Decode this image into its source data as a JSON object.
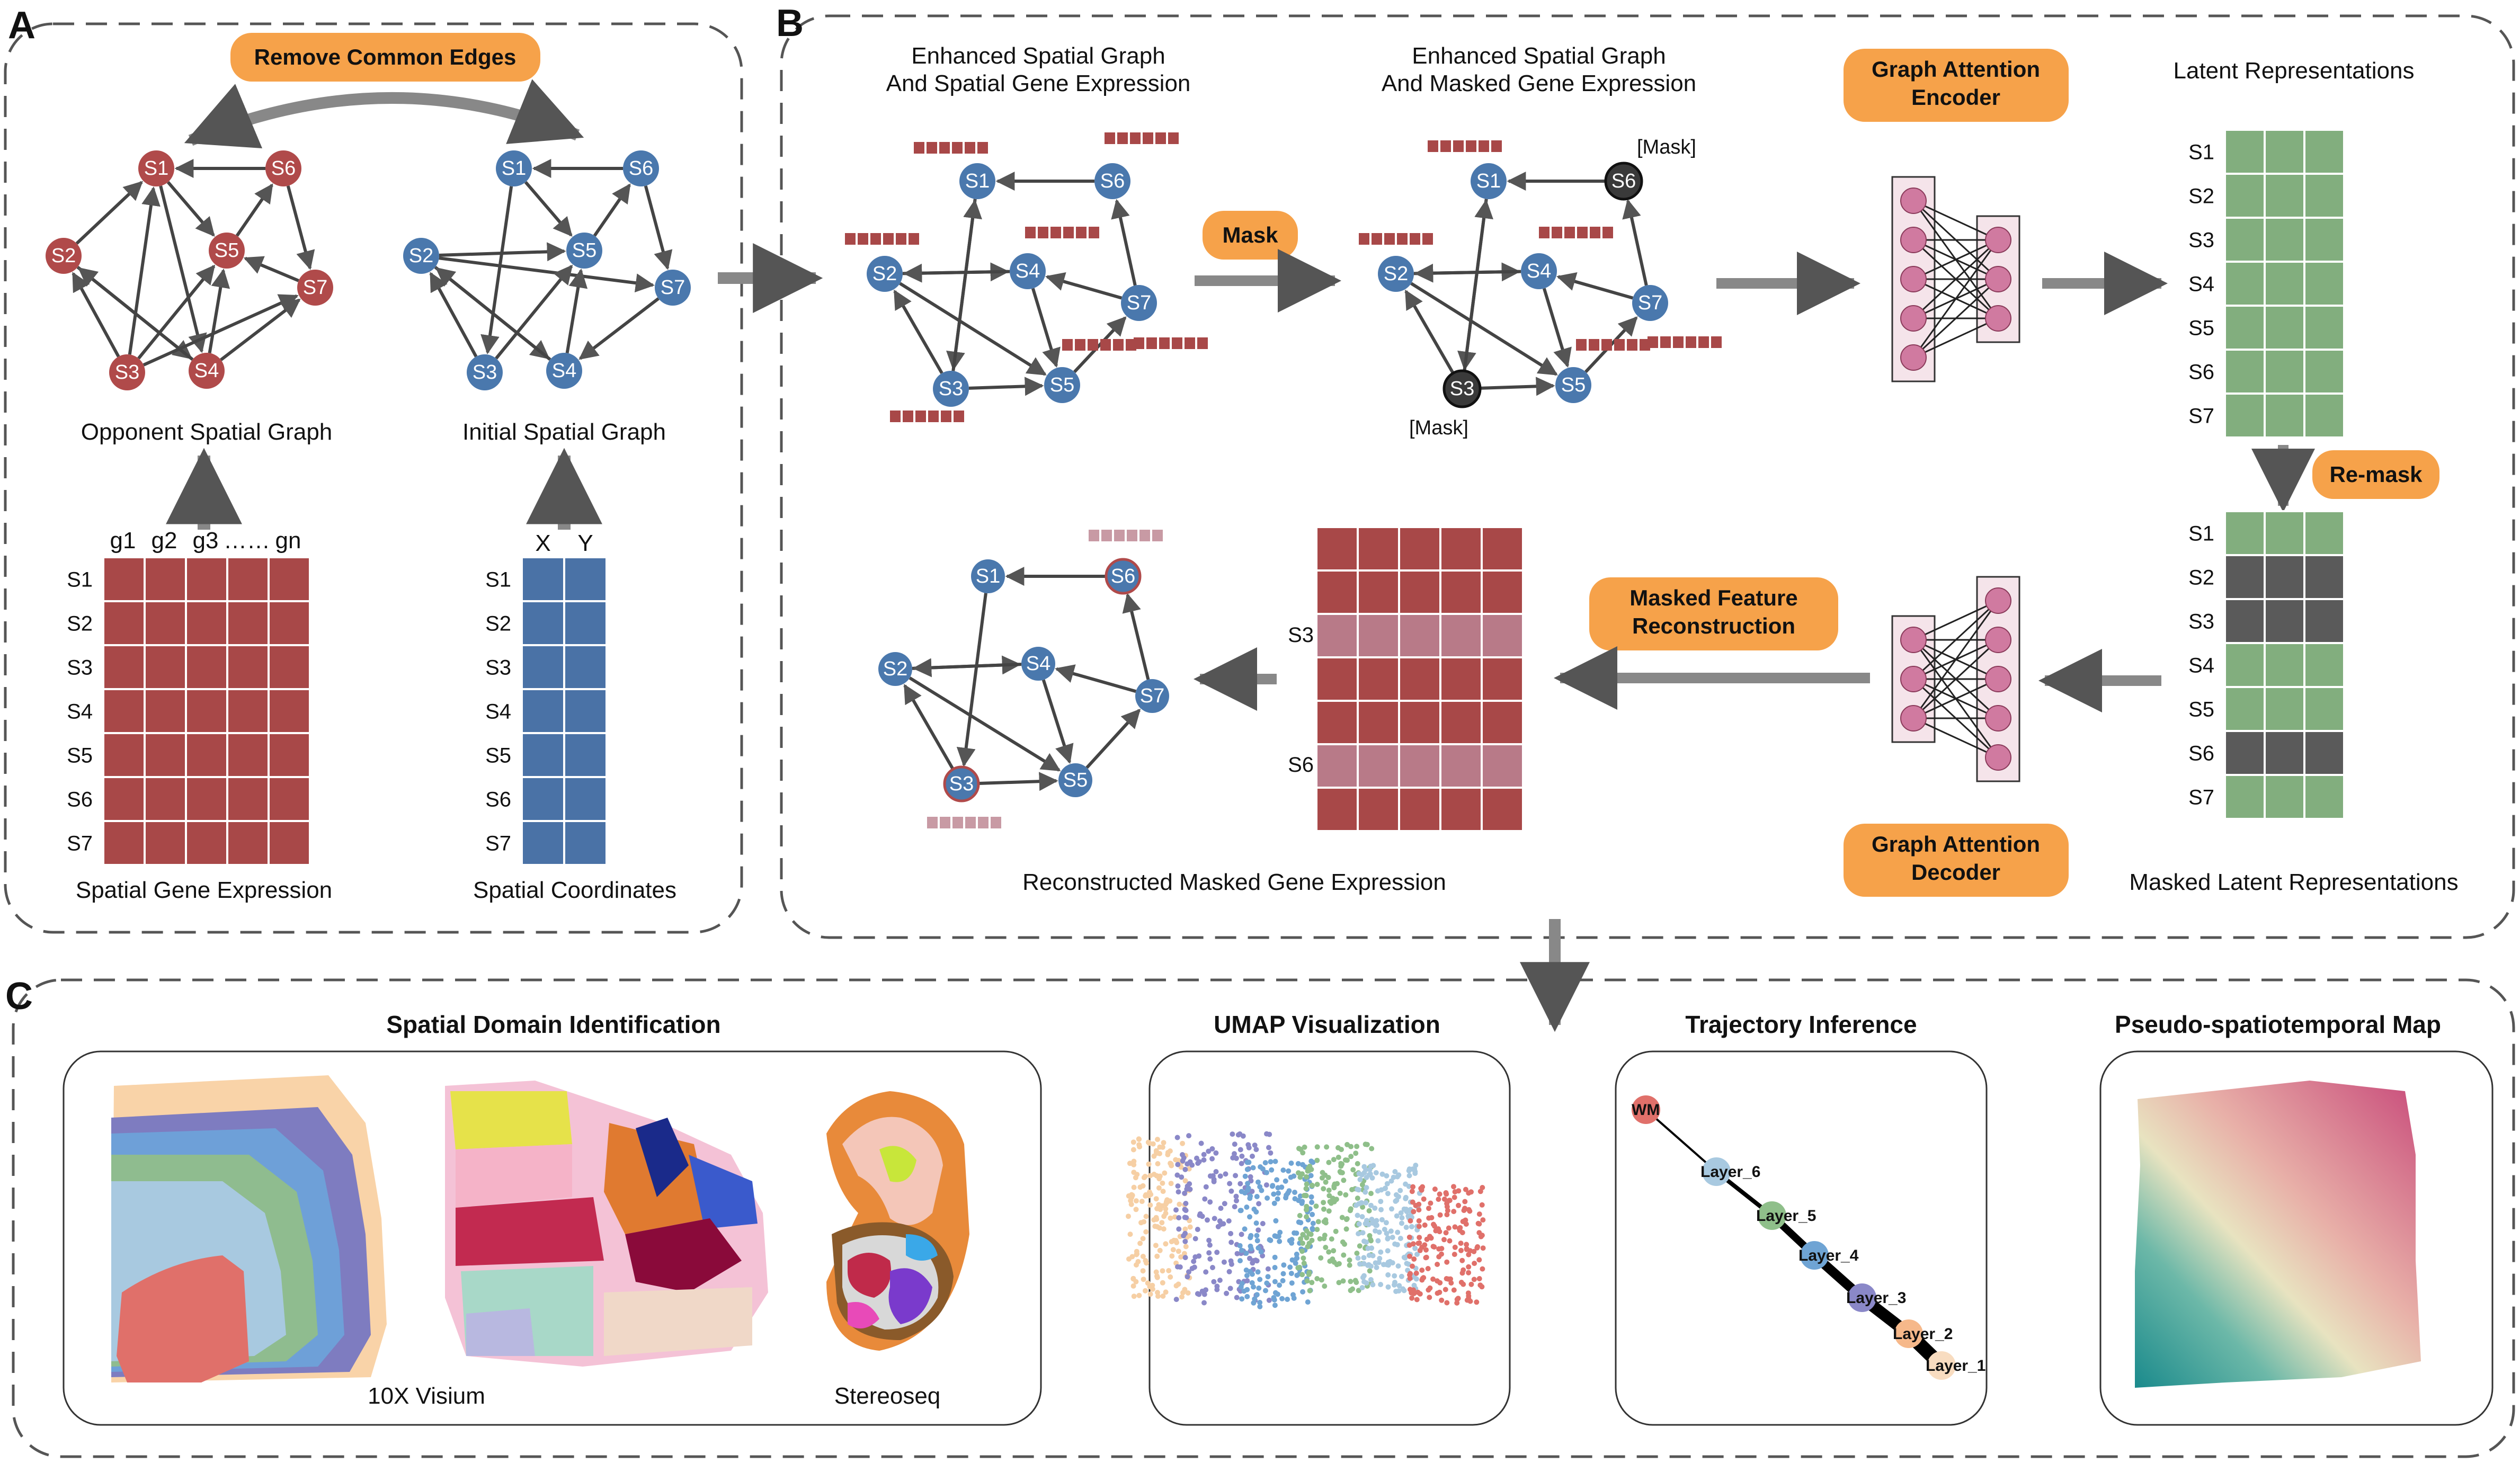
{
  "panels": {
    "a": "A",
    "b": "B",
    "c": "C"
  },
  "panel_a": {
    "pill": "Remove Common Edges",
    "opponent_graph": "Opponent Spatial Graph",
    "initial_graph": "Initial Spatial Graph",
    "gene_expr": "Spatial Gene Expression",
    "coords": "Spatial Coordinates",
    "gene_headers": [
      "g1",
      "g2",
      "g3",
      "……",
      "gn"
    ],
    "coord_headers": [
      "X",
      "Y"
    ],
    "rows": [
      "S1",
      "S2",
      "S3",
      "S4",
      "S5",
      "S6",
      "S7"
    ]
  },
  "panel_b": {
    "enh1": [
      "Enhanced Spatial Graph",
      "And Spatial Gene Expression"
    ],
    "enh2": [
      "Enhanced Spatial Graph",
      "And Masked Gene Expression"
    ],
    "mask_pill": "Mask",
    "mask_tag": "[Mask]",
    "encoder": [
      "Graph Attention",
      "Encoder"
    ],
    "decoder": [
      "Graph Attention",
      "Decoder"
    ],
    "latent": "Latent Representations",
    "remask": "Re-mask",
    "masked_latent": "Masked Latent Representations",
    "mfr": [
      "Masked Feature",
      "Reconstruction"
    ],
    "recon": "Reconstructed Masked Gene Expression",
    "recon_rows": [
      "S3",
      "S6"
    ]
  },
  "panel_c": {
    "sdi": "Spatial Domain Identification",
    "visium": "10X Visium",
    "stereo": "Stereoseq",
    "umap": "UMAP Visualization",
    "traj": "Trajectory Inference",
    "traj_nodes": [
      "WM",
      "Layer_6",
      "Layer_5",
      "Layer_4",
      "Layer_3",
      "Layer_2",
      "Layer_1"
    ],
    "pseudo": "Pseudo-spatiotemporal Map"
  },
  "colors": {
    "red_node": "#b04a4a",
    "blue_node": "#4a78ad",
    "gene_matrix": "#a84848",
    "coord_matrix": "#4a72a6",
    "latent": "#82ae7e",
    "masked_row": "#5a5a5a",
    "pill": "#f6a24a",
    "neuron": "#d07aa0"
  }
}
